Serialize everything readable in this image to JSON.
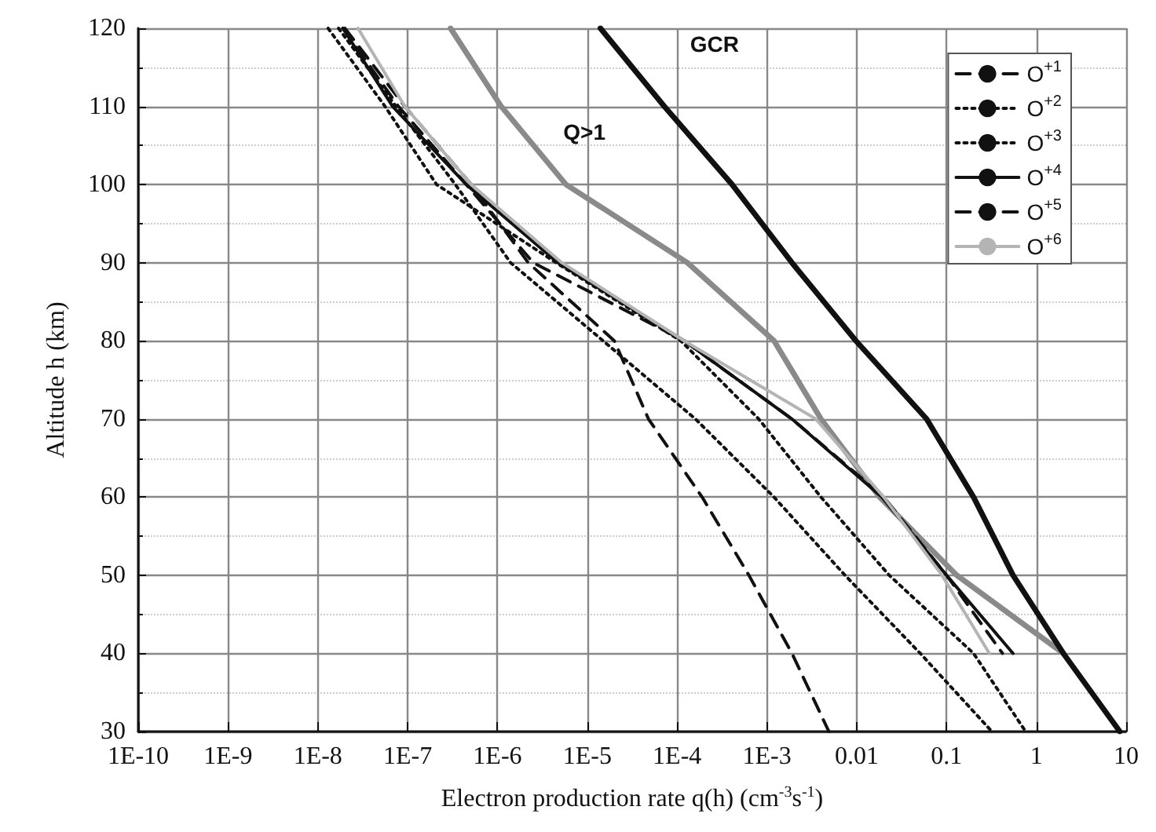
{
  "chart_data": {
    "type": "line",
    "xlabel": "Electron production rate q(h) (cm$^{-3}$s$^{-1}$)",
    "ylabel": "Altitude h (km)",
    "log": "x",
    "grid": true,
    "legend": "top right",
    "marker": "none",
    "xlim": [
      1e-10,
      10
    ],
    "xticks": [
      {
        "value": 1e-10,
        "label": "1E-10"
      },
      {
        "value": 1e-09,
        "label": "1E-9"
      },
      {
        "value": 1e-08,
        "label": "1E-8"
      },
      {
        "value": 1e-07,
        "label": "1E-7"
      },
      {
        "value": 1e-06,
        "label": "1E-6"
      },
      {
        "value": 1e-05,
        "label": "1E-5"
      },
      {
        "value": 0.0001,
        "label": "1E-4"
      },
      {
        "value": 0.001,
        "label": "1E-3"
      },
      0.01,
      0.1,
      1,
      10
    ],
    "ylim": [
      30,
      120
    ],
    "yticks": [
      30,
      40,
      50,
      60,
      70,
      80,
      90,
      100,
      110,
      120
    ],
    "series": [
      {
        "name": "O$^{+1}$",
        "color": "#111111",
        "line_style": "dashed",
        "x": [
          2e-08,
          9.3e-08,
          5.1e-07,
          2.2e-06,
          2e-05,
          4.8e-05,
          0.00019,
          0.00063,
          0.0019,
          0.0049
        ],
        "values": [
          120,
          110,
          100,
          90,
          80,
          70,
          60,
          50,
          40,
          30
        ]
      },
      {
        "name": "O$^{+2}$",
        "color": "#111111",
        "line_style": "dotted",
        "x": [
          1.7e-08,
          7.4e-08,
          3.4e-07,
          1.4e-06,
          1.5e-05,
          0.00016,
          0.0012,
          0.0074,
          0.051,
          0.32
        ],
        "values": [
          120,
          110,
          100,
          90,
          80,
          70,
          60,
          50,
          40,
          30
        ]
      },
      {
        "name": "O$^{+3}$",
        "color": "#111111",
        "line_style": "dotted",
        "x": [
          1.3e-08,
          5.6e-08,
          2.1e-07,
          4.5e-06,
          0.00011,
          0.00081,
          0.004,
          0.023,
          0.2,
          0.76
        ],
        "values": [
          120,
          110,
          100,
          90,
          80,
          70,
          60,
          50,
          40,
          30
        ]
      },
      {
        "name": "O$^{+4}$",
        "color": "#111111",
        "line_style": "solid",
        "x": [
          1.9e-08,
          6.8e-08,
          4.5e-07,
          4.7e-06,
          0.00012,
          0.0019,
          0.019,
          0.1,
          0.55
        ],
        "values": [
          120,
          110,
          100,
          90,
          80,
          70,
          60,
          50,
          40
        ]
      },
      {
        "name": "O$^{+5}$",
        "color": "#111111",
        "line_style": "dashed",
        "x": [
          1.9e-08,
          7.9e-08,
          4.5e-07,
          2.5e-06,
          0.00012,
          0.0019,
          0.02,
          0.1,
          0.42
        ],
        "values": [
          120,
          110,
          100,
          90,
          80,
          70,
          60,
          50,
          40
        ]
      },
      {
        "name": "O$^{+6}$",
        "color": "#b4b4b4",
        "line_style": "solid",
        "x": [
          2.8e-08,
          9.3e-08,
          5.1e-07,
          5.2e-06,
          0.00012,
          0.0035,
          0.02,
          0.089,
          0.3
        ],
        "values": [
          120,
          110,
          100,
          90,
          80,
          70,
          60,
          50,
          40
        ]
      },
      {
        "color": "#8a8a8a",
        "line_style": "solid",
        "x": [
          3e-07,
          1.1e-06,
          5.8e-06,
          0.00013,
          0.0012,
          0.004,
          0.018,
          0.13,
          2
        ],
        "values": [
          120,
          110,
          100,
          90,
          80,
          70,
          60,
          50,
          40
        ]
      },
      {
        "color": "#111111",
        "line_style": "solid",
        "x": [
          1.4e-05,
          7.2e-05,
          0.00041,
          0.0019,
          0.0098,
          0.06,
          0.2,
          0.55,
          2,
          8.5
        ],
        "values": [
          120,
          110,
          100,
          90,
          80,
          70,
          60,
          50,
          40,
          30
        ]
      }
    ],
    "annotations": [
      "GCR",
      "Q>1"
    ]
  }
}
